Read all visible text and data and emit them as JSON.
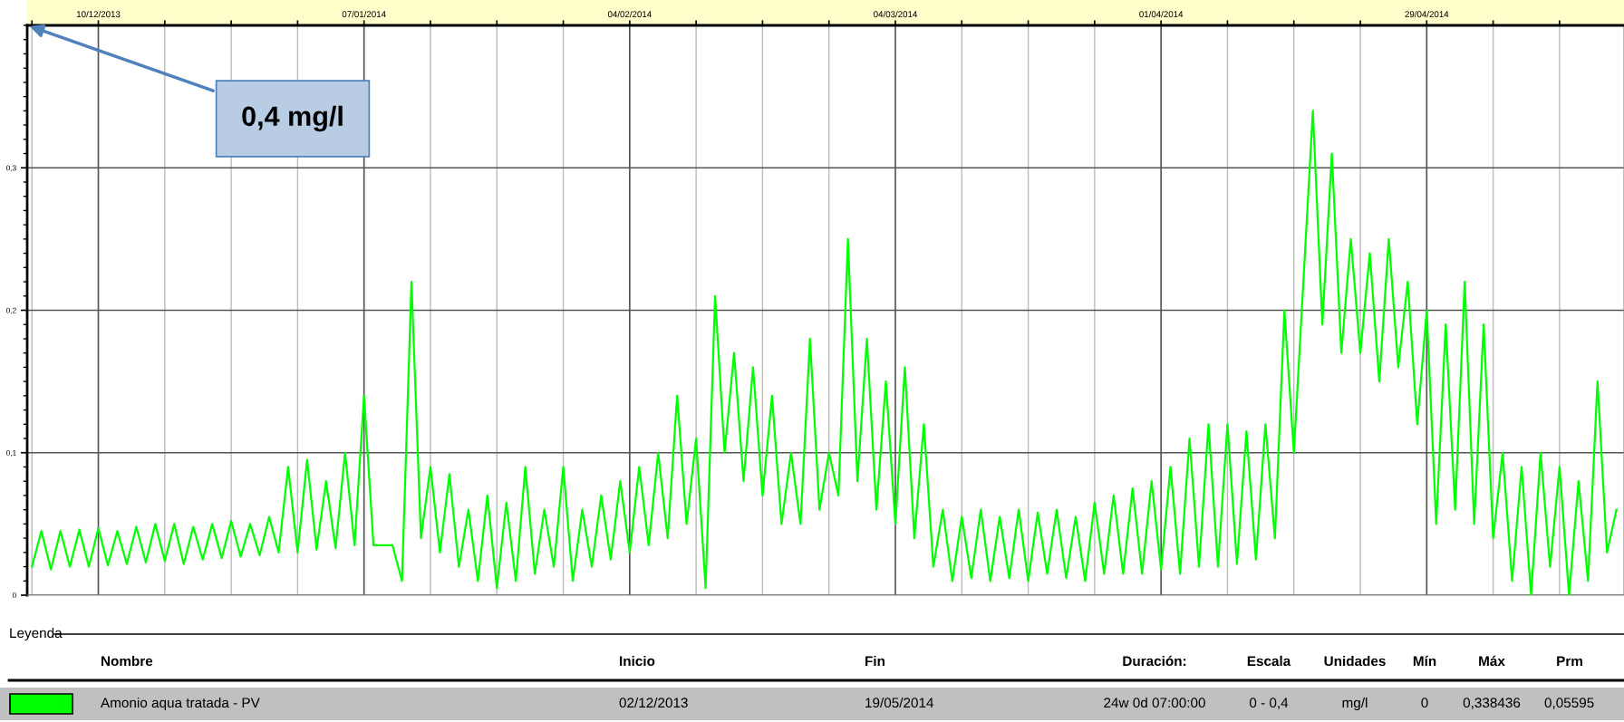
{
  "chart_data": {
    "type": "line",
    "xlim": [
      "2013-12-02T12:00",
      "2014-05-19T19:00"
    ],
    "xticks": [
      {
        "value": "2013-12-03",
        "label": null
      },
      {
        "value": "2013-12-10",
        "label": "10/12/2013"
      },
      {
        "value": "2013-12-17",
        "label": null
      },
      {
        "value": "2013-12-24",
        "label": null
      },
      {
        "value": "2013-12-31",
        "label": null
      },
      {
        "value": "2014-01-07",
        "label": "07/01/2014"
      },
      {
        "value": "2014-01-14",
        "label": null
      },
      {
        "value": "2014-01-21",
        "label": null
      },
      {
        "value": "2014-01-28",
        "label": null
      },
      {
        "value": "2014-02-04",
        "label": "04/02/2014"
      },
      {
        "value": "2014-02-11",
        "label": null
      },
      {
        "value": "2014-02-18",
        "label": null
      },
      {
        "value": "2014-02-25",
        "label": null
      },
      {
        "value": "2014-03-04",
        "label": "04/03/2014"
      },
      {
        "value": "2014-03-11",
        "label": null
      },
      {
        "value": "2014-03-18",
        "label": null
      },
      {
        "value": "2014-03-25",
        "label": null
      },
      {
        "value": "2014-04-01",
        "label": "01/04/2014"
      },
      {
        "value": "2014-04-08",
        "label": null
      },
      {
        "value": "2014-04-15",
        "label": null
      },
      {
        "value": "2014-04-22",
        "label": null
      },
      {
        "value": "2014-04-29",
        "label": "29/04/2014"
      },
      {
        "value": "2014-05-06",
        "label": null
      },
      {
        "value": "2014-05-13",
        "label": null
      }
    ],
    "ylim": [
      0,
      0.4
    ],
    "yticks": [
      {
        "value": 0,
        "label": "0"
      },
      {
        "value": 0.01,
        "label": null
      },
      {
        "value": 0.02,
        "label": null
      },
      {
        "value": 0.03,
        "label": null
      },
      {
        "value": 0.04,
        "label": null
      },
      {
        "value": 0.05,
        "label": null
      },
      {
        "value": 0.06,
        "label": null
      },
      {
        "value": 0.07,
        "label": null
      },
      {
        "value": 0.08,
        "label": null
      },
      {
        "value": 0.09,
        "label": null
      },
      {
        "value": 0.1,
        "label": "0,1"
      },
      {
        "value": 0.11,
        "label": null
      },
      {
        "value": 0.12,
        "label": null
      },
      {
        "value": 0.13,
        "label": null
      },
      {
        "value": 0.14,
        "label": null
      },
      {
        "value": 0.15,
        "label": null
      },
      {
        "value": 0.16,
        "label": null
      },
      {
        "value": 0.17,
        "label": null
      },
      {
        "value": 0.18,
        "label": null
      },
      {
        "value": 0.19,
        "label": null
      },
      {
        "value": 0.2,
        "label": "0,2"
      },
      {
        "value": 0.21,
        "label": null
      },
      {
        "value": 0.22,
        "label": null
      },
      {
        "value": 0.23,
        "label": null
      },
      {
        "value": 0.24,
        "label": null
      },
      {
        "value": 0.25,
        "label": null
      },
      {
        "value": 0.26,
        "label": null
      },
      {
        "value": 0.27,
        "label": null
      },
      {
        "value": 0.28,
        "label": null
      },
      {
        "value": 0.29,
        "label": null
      },
      {
        "value": 0.3,
        "label": "0,3"
      },
      {
        "value": 0.31,
        "label": null
      },
      {
        "value": 0.32,
        "label": null
      },
      {
        "value": 0.33,
        "label": null
      },
      {
        "value": 0.34,
        "label": null
      },
      {
        "value": 0.35,
        "label": null
      },
      {
        "value": 0.36,
        "label": null
      },
      {
        "value": 0.37,
        "label": null
      },
      {
        "value": 0.38,
        "label": null
      },
      {
        "value": 0.39,
        "label": null
      },
      {
        "value": 0.4,
        "label": null
      }
    ],
    "grid": true,
    "legend": "bottom",
    "x": [
      "2013-12-03",
      "2013-12-04",
      "2013-12-05",
      "2013-12-06",
      "2013-12-07",
      "2013-12-08",
      "2013-12-09",
      "2013-12-10",
      "2013-12-11",
      "2013-12-12",
      "2013-12-13",
      "2013-12-14",
      "2013-12-15",
      "2013-12-16",
      "2013-12-17",
      "2013-12-18",
      "2013-12-19",
      "2013-12-20",
      "2013-12-21",
      "2013-12-22",
      "2013-12-23",
      "2013-12-24",
      "2013-12-25",
      "2013-12-26",
      "2013-12-27",
      "2013-12-28",
      "2013-12-29",
      "2013-12-30",
      "2013-12-31",
      "2014-01-01",
      "2014-01-02",
      "2014-01-03",
      "2014-01-04",
      "2014-01-05",
      "2014-01-06",
      "2014-01-07",
      "2014-01-08",
      "2014-01-09",
      "2014-01-10",
      "2014-01-11",
      "2014-01-12",
      "2014-01-13",
      "2014-01-14",
      "2014-01-15",
      "2014-01-16",
      "2014-01-17",
      "2014-01-18",
      "2014-01-19",
      "2014-01-20",
      "2014-01-21",
      "2014-01-22",
      "2014-01-23",
      "2014-01-24",
      "2014-01-25",
      "2014-01-26",
      "2014-01-27",
      "2014-01-28",
      "2014-01-29",
      "2014-01-30",
      "2014-01-31",
      "2014-02-01",
      "2014-02-02",
      "2014-02-03",
      "2014-02-04",
      "2014-02-05",
      "2014-02-06",
      "2014-02-07",
      "2014-02-08",
      "2014-02-09",
      "2014-02-10",
      "2014-02-11",
      "2014-02-12",
      "2014-02-13",
      "2014-02-14",
      "2014-02-15",
      "2014-02-16",
      "2014-02-17",
      "2014-02-18",
      "2014-02-19",
      "2014-02-20",
      "2014-02-21",
      "2014-02-22",
      "2014-02-23",
      "2014-02-24",
      "2014-02-25",
      "2014-02-26",
      "2014-02-27",
      "2014-02-28",
      "2014-03-01",
      "2014-03-02",
      "2014-03-03",
      "2014-03-04",
      "2014-03-05",
      "2014-03-06",
      "2014-03-07",
      "2014-03-08",
      "2014-03-09",
      "2014-03-10",
      "2014-03-11",
      "2014-03-12",
      "2014-03-13",
      "2014-03-14",
      "2014-03-15",
      "2014-03-16",
      "2014-03-17",
      "2014-03-18",
      "2014-03-19",
      "2014-03-20",
      "2014-03-21",
      "2014-03-22",
      "2014-03-23",
      "2014-03-24",
      "2014-03-25",
      "2014-03-26",
      "2014-03-27",
      "2014-03-28",
      "2014-03-29",
      "2014-03-30",
      "2014-03-31",
      "2014-04-01",
      "2014-04-02",
      "2014-04-03",
      "2014-04-04",
      "2014-04-05",
      "2014-04-06",
      "2014-04-07",
      "2014-04-08",
      "2014-04-09",
      "2014-04-10",
      "2014-04-11",
      "2014-04-12",
      "2014-04-13",
      "2014-04-14",
      "2014-04-15",
      "2014-04-16",
      "2014-04-17",
      "2014-04-18",
      "2014-04-19",
      "2014-04-20",
      "2014-04-21",
      "2014-04-22",
      "2014-04-23",
      "2014-04-24",
      "2014-04-25",
      "2014-04-26",
      "2014-04-27",
      "2014-04-28",
      "2014-04-29",
      "2014-04-30",
      "2014-05-01",
      "2014-05-02",
      "2014-05-03",
      "2014-05-04",
      "2014-05-05",
      "2014-05-06",
      "2014-05-07",
      "2014-05-08",
      "2014-05-09",
      "2014-05-10",
      "2014-05-11",
      "2014-05-12",
      "2014-05-13",
      "2014-05-14",
      "2014-05-15",
      "2014-05-16",
      "2014-05-17",
      "2014-05-18",
      "2014-05-19"
    ],
    "series": [
      {
        "name": "Amonio aqua tratada - PV",
        "color": "#00ff00",
        "values": [
          0.02,
          0.045,
          0.018,
          0.045,
          0.02,
          0.046,
          0.02,
          0.047,
          0.021,
          0.045,
          0.022,
          0.048,
          0.023,
          0.05,
          0.024,
          0.05,
          0.022,
          0.048,
          0.025,
          0.05,
          0.026,
          0.052,
          0.027,
          0.05,
          0.028,
          0.055,
          0.03,
          0.09,
          0.03,
          0.095,
          0.032,
          0.08,
          0.033,
          0.1,
          0.035,
          0.14,
          0.035,
          0.035,
          0.035,
          0.01,
          0.22,
          0.04,
          0.09,
          0.03,
          0.085,
          0.02,
          0.06,
          0.01,
          0.07,
          0.005,
          0.065,
          0.01,
          0.09,
          0.015,
          0.06,
          0.02,
          0.09,
          0.01,
          0.06,
          0.02,
          0.07,
          0.025,
          0.08,
          0.03,
          0.09,
          0.035,
          0.1,
          0.04,
          0.14,
          0.05,
          0.11,
          0.005,
          0.21,
          0.1,
          0.17,
          0.08,
          0.16,
          0.07,
          0.14,
          0.05,
          0.1,
          0.05,
          0.18,
          0.06,
          0.1,
          0.07,
          0.25,
          0.08,
          0.18,
          0.06,
          0.15,
          0.05,
          0.16,
          0.04,
          0.12,
          0.02,
          0.06,
          0.01,
          0.055,
          0.012,
          0.06,
          0.01,
          0.055,
          0.012,
          0.06,
          0.01,
          0.058,
          0.015,
          0.06,
          0.012,
          0.055,
          0.01,
          0.065,
          0.015,
          0.07,
          0.015,
          0.075,
          0.015,
          0.08,
          0.018,
          0.09,
          0.015,
          0.11,
          0.02,
          0.12,
          0.02,
          0.12,
          0.022,
          0.115,
          0.025,
          0.12,
          0.04,
          0.2,
          0.1,
          0.22,
          0.34,
          0.19,
          0.31,
          0.17,
          0.25,
          0.17,
          0.24,
          0.15,
          0.25,
          0.16,
          0.22,
          0.12,
          0.2,
          0.05,
          0.19,
          0.06,
          0.22,
          0.05,
          0.19,
          0.04,
          0.1,
          0.01,
          0.09,
          0.0,
          0.1,
          0.02,
          0.09,
          0.0,
          0.08,
          0.01,
          0.15,
          0.03,
          0.06
        ]
      }
    ],
    "annotations": [
      "0,4 mg/l",
      "Leyenda",
      "Nombre",
      "Inicio",
      "Fin",
      "Duración:",
      "Escala",
      "Unidades",
      "Mín",
      "Máx",
      "Prm",
      "02/12/2013",
      "19/05/2014",
      "24w 0d 07:00:00",
      "0 - 0,4",
      "mg/l",
      "0",
      "0,338436",
      "0,05595"
    ]
  }
}
